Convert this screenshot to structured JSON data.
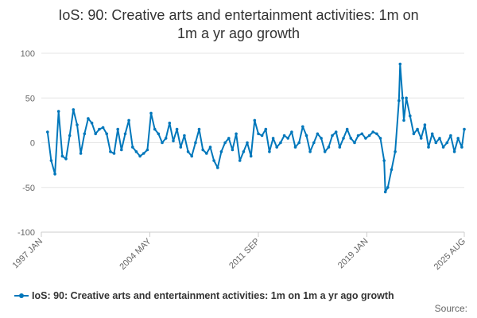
{
  "title_line1": "IoS: 90: Creative arts and entertainment activities: 1m on",
  "title_line2": "1m a yr ago growth",
  "source_label": "Source:",
  "colors": {
    "series": "#0077bb",
    "grid": "#e6e6e6",
    "axis_text": "#666666"
  },
  "chart_data": {
    "type": "line",
    "title": "IoS: 90: Creative arts and entertainment activities: 1m on 1m a yr ago growth",
    "xlabel": "",
    "ylabel": "",
    "ylim": [
      -100,
      100
    ],
    "y_ticks": [
      -100,
      -50,
      0,
      50,
      100
    ],
    "x_range": [
      "1997-01",
      "2025-08"
    ],
    "x_tick_labels": [
      {
        "label": "1997 JAN",
        "date": "1997-01"
      },
      {
        "label": "2004 MAY",
        "date": "2004-05"
      },
      {
        "label": "2011 SEP",
        "date": "2011-09"
      },
      {
        "label": "2019 JAN",
        "date": "2019-01"
      },
      {
        "label": "2025 AUG",
        "date": "2025-08"
      }
    ],
    "grid": true,
    "legend_position": "bottom-left",
    "series": [
      {
        "name": "IoS: 90: Creative arts and entertainment activities: 1m on 1m a yr ago growth",
        "x": [
          "1997-06",
          "1997-09",
          "1997-12",
          "1998-03",
          "1998-06",
          "1998-09",
          "1998-12",
          "1999-03",
          "1999-06",
          "1999-09",
          "1999-12",
          "2000-03",
          "2000-06",
          "2000-09",
          "2000-12",
          "2001-03",
          "2001-06",
          "2001-09",
          "2001-12",
          "2002-03",
          "2002-06",
          "2002-09",
          "2002-12",
          "2003-03",
          "2003-06",
          "2003-09",
          "2003-12",
          "2004-03",
          "2004-06",
          "2004-09",
          "2004-12",
          "2005-03",
          "2005-06",
          "2005-09",
          "2005-12",
          "2006-03",
          "2006-06",
          "2006-09",
          "2006-12",
          "2007-03",
          "2007-06",
          "2007-09",
          "2007-12",
          "2008-03",
          "2008-06",
          "2008-09",
          "2008-12",
          "2009-03",
          "2009-06",
          "2009-09",
          "2009-12",
          "2010-03",
          "2010-06",
          "2010-09",
          "2010-12",
          "2011-03",
          "2011-06",
          "2011-09",
          "2011-12",
          "2012-03",
          "2012-06",
          "2012-09",
          "2012-12",
          "2013-03",
          "2013-06",
          "2013-09",
          "2013-12",
          "2014-03",
          "2014-06",
          "2014-09",
          "2014-12",
          "2015-03",
          "2015-06",
          "2015-09",
          "2015-12",
          "2016-03",
          "2016-06",
          "2016-09",
          "2016-12",
          "2017-03",
          "2017-06",
          "2017-09",
          "2017-12",
          "2018-03",
          "2018-06",
          "2018-09",
          "2018-12",
          "2019-03",
          "2019-06",
          "2019-09",
          "2019-12",
          "2020-03",
          "2020-04",
          "2020-06",
          "2020-09",
          "2020-12",
          "2021-03",
          "2021-04",
          "2021-06",
          "2021-07",
          "2021-09",
          "2021-12",
          "2022-03",
          "2022-06",
          "2022-09",
          "2022-12",
          "2023-03",
          "2023-06",
          "2023-09",
          "2023-12",
          "2024-03",
          "2024-06",
          "2024-09",
          "2024-12",
          "2025-03",
          "2025-06",
          "2025-08"
        ],
        "values": [
          12,
          -20,
          -35,
          35,
          -15,
          -18,
          8,
          37,
          20,
          -12,
          10,
          27,
          22,
          10,
          15,
          17,
          10,
          -10,
          -12,
          15,
          -8,
          10,
          25,
          -5,
          -10,
          -15,
          -12,
          -8,
          33,
          15,
          10,
          0,
          5,
          22,
          2,
          15,
          -5,
          8,
          -10,
          -15,
          0,
          15,
          -8,
          -12,
          -5,
          -20,
          -28,
          -10,
          0,
          5,
          -8,
          10,
          -20,
          -10,
          0,
          -15,
          25,
          10,
          8,
          15,
          -10,
          5,
          -5,
          0,
          8,
          5,
          12,
          -5,
          0,
          18,
          8,
          -10,
          0,
          10,
          5,
          -10,
          -5,
          8,
          12,
          -5,
          5,
          15,
          5,
          0,
          8,
          10,
          5,
          8,
          12,
          10,
          5,
          -20,
          -55,
          -50,
          -30,
          -10,
          47,
          88,
          50,
          25,
          50,
          30,
          10,
          15,
          5,
          20,
          -5,
          10,
          0,
          5,
          -5,
          0,
          8,
          -10,
          5,
          -5,
          15
        ]
      }
    ]
  }
}
